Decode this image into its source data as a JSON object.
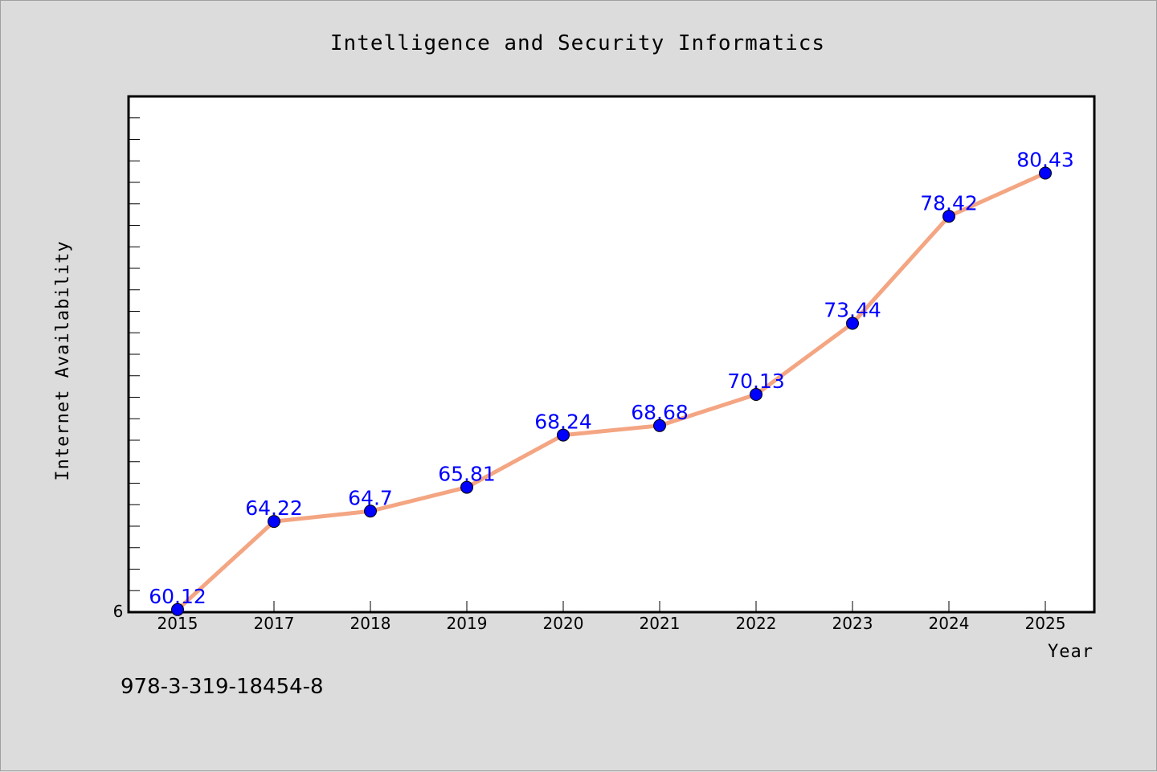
{
  "chart_data": {
    "type": "line",
    "title": "Intelligence and Security Informatics",
    "xlabel": "Year",
    "ylabel": "Internet Availability",
    "categories": [
      "2015",
      "2017",
      "2018",
      "2019",
      "2020",
      "2021",
      "2022",
      "2023",
      "2024",
      "2025"
    ],
    "series": [
      {
        "values": [
          60.12,
          64.22,
          64.7,
          65.81,
          68.24,
          68.68,
          70.13,
          73.44,
          78.42,
          80.43
        ],
        "labels": [
          "60.12",
          "64.22",
          "64.7",
          "65.81",
          "68.24",
          "68.68",
          "70.13",
          "73.44",
          "78.42",
          "80.43"
        ],
        "line_color": "#f4a582",
        "marker_color": "#0000ff"
      }
    ],
    "ylim": [
      60,
      84
    ],
    "y_tick_label": "6",
    "grid": false,
    "legend": "none"
  },
  "footer": {
    "text": "978-3-319-18454-8"
  }
}
